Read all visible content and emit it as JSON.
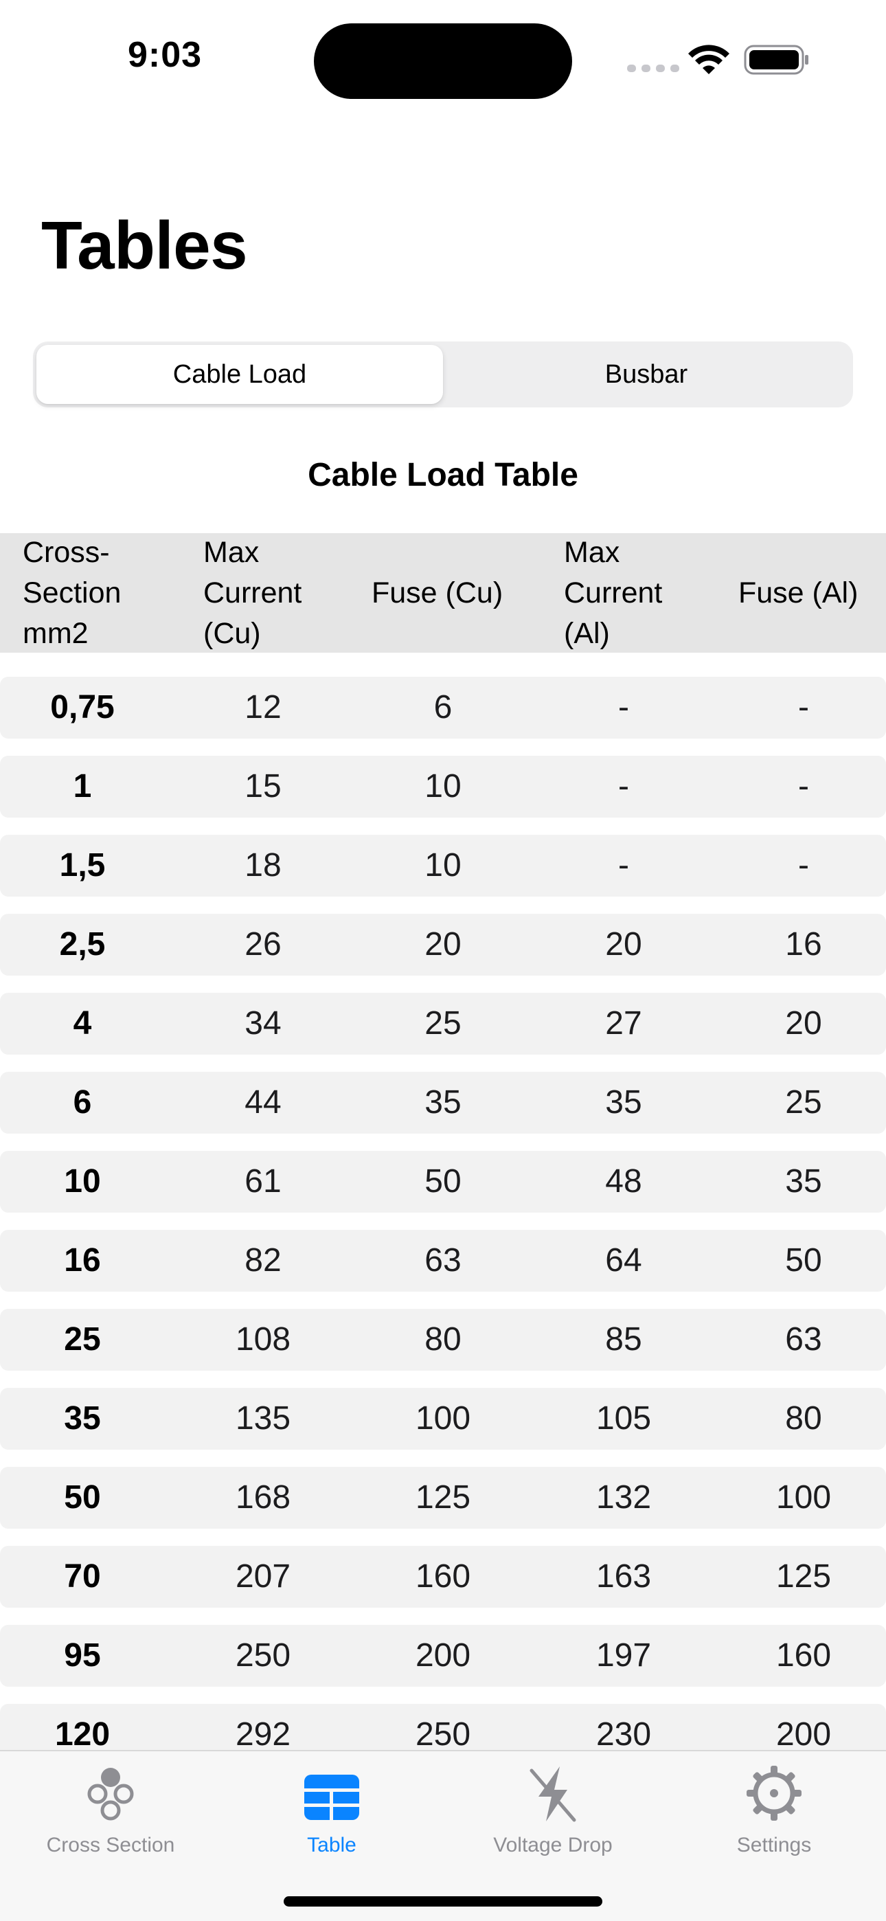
{
  "status_bar": {
    "time": "9:03",
    "signal_icon": "cellular-signal-icon",
    "wifi_icon": "wifi-icon",
    "battery_icon": "battery-icon"
  },
  "page": {
    "title": "Tables"
  },
  "segmented_control": {
    "segments": [
      {
        "label": "Cable Load",
        "selected": true
      },
      {
        "label": "Busbar",
        "selected": false
      }
    ]
  },
  "table": {
    "title": "Cable Load Table",
    "headers": [
      "Cross-\nSection\nmm2",
      "Max\nCurrent\n(Cu)",
      "Fuse (Cu)",
      "Max\nCurrent\n(Al)",
      "Fuse (Al)"
    ],
    "rows": [
      [
        "0,75",
        "12",
        "6",
        "-",
        "-"
      ],
      [
        "1",
        "15",
        "10",
        "-",
        "-"
      ],
      [
        "1,5",
        "18",
        "10",
        "-",
        "-"
      ],
      [
        "2,5",
        "26",
        "20",
        "20",
        "16"
      ],
      [
        "4",
        "34",
        "25",
        "27",
        "20"
      ],
      [
        "6",
        "44",
        "35",
        "35",
        "25"
      ],
      [
        "10",
        "61",
        "50",
        "48",
        "35"
      ],
      [
        "16",
        "82",
        "63",
        "64",
        "50"
      ],
      [
        "25",
        "108",
        "80",
        "85",
        "63"
      ],
      [
        "35",
        "135",
        "100",
        "105",
        "80"
      ],
      [
        "50",
        "168",
        "125",
        "132",
        "100"
      ],
      [
        "70",
        "207",
        "160",
        "163",
        "125"
      ],
      [
        "95",
        "250",
        "200",
        "197",
        "160"
      ],
      [
        "120",
        "292",
        "250",
        "230",
        "200"
      ]
    ]
  },
  "tab_bar": {
    "tabs": [
      {
        "label": "Cross Section",
        "icon": "cross-section-icon",
        "selected": false
      },
      {
        "label": "Table",
        "icon": "table-icon",
        "selected": true
      },
      {
        "label": "Voltage Drop",
        "icon": "voltage-drop-icon",
        "selected": false
      },
      {
        "label": "Settings",
        "icon": "gear-icon",
        "selected": false
      }
    ],
    "accent_color": "#0A84FF",
    "inactive_color": "#8E8E93"
  }
}
